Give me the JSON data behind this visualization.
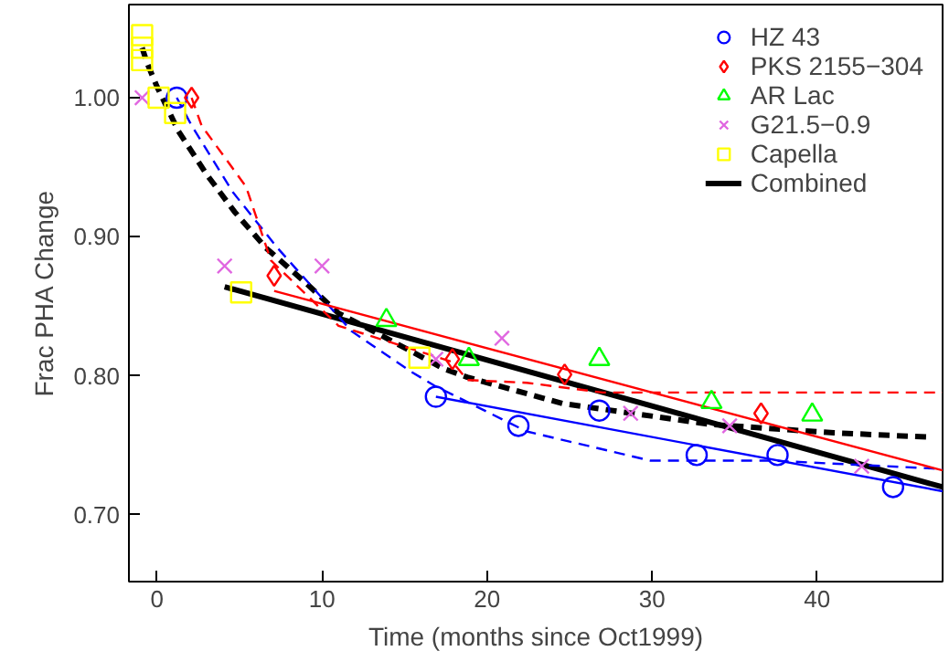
{
  "chart_data": {
    "type": "scatter",
    "xlabel": "Time (months since Oct1999)",
    "ylabel": "Frac PHA Change",
    "xlim": [
      -1.7,
      47.6
    ],
    "ylim": [
      0.652,
      1.067
    ],
    "xticks": [
      0,
      10,
      20,
      30,
      40
    ],
    "yticks": [
      {
        "value": 0.7,
        "label": "0.70"
      },
      {
        "value": 0.8,
        "label": "0.80"
      },
      {
        "value": 0.9,
        "label": "0.90"
      },
      {
        "value": 1.0,
        "label": "1.00"
      }
    ],
    "legend": "top right",
    "grid": false,
    "series": [
      {
        "name": "HZ 43",
        "color": "#0000ff",
        "marker": "circle",
        "x": [
          1.2,
          16.9,
          21.9,
          26.8,
          32.7,
          37.6,
          44.6
        ],
        "values": [
          1.0,
          0.785,
          0.764,
          0.775,
          0.743,
          0.743,
          0.72
        ]
      },
      {
        "name": "PKS 2155−304",
        "color": "#ff0000",
        "marker": "diamond",
        "x": [
          2.1,
          7.1,
          17.9,
          24.7,
          36.6
        ],
        "values": [
          1.0,
          0.872,
          0.812,
          0.801,
          0.773
        ]
      },
      {
        "name": "AR Lac",
        "color": "#00ff00",
        "marker": "triangle",
        "x": [
          13.9,
          18.9,
          26.8,
          33.6,
          39.7
        ],
        "values": [
          0.84,
          0.812,
          0.812,
          0.781,
          0.772
        ]
      },
      {
        "name": "G21.5−0.9",
        "color": "#e066e0",
        "marker": "cross",
        "x": [
          -0.9,
          4.1,
          10.0,
          16.9,
          20.9,
          28.7,
          34.7,
          42.7
        ],
        "values": [
          1.0,
          0.879,
          0.879,
          0.812,
          0.827,
          0.773,
          0.764,
          0.735
        ]
      },
      {
        "name": "Capella",
        "color": "#ffff00",
        "marker": "square",
        "x": [
          -0.9,
          -0.9,
          -0.9,
          0.1,
          1.1,
          5.1,
          15.9
        ],
        "values": [
          1.045,
          1.036,
          1.027,
          1.0,
          0.989,
          0.86,
          0.813
        ]
      },
      {
        "name": "Combined",
        "color": "#000000",
        "type": "line",
        "line_style": "solid",
        "x": [
          4.1,
          47.6
        ],
        "values": [
          0.864,
          0.72
        ]
      },
      {
        "type": "line",
        "color": "#000000",
        "line_style": "dashed",
        "x": [
          -0.9,
          -0.6,
          0,
          1.3,
          3,
          4.7,
          6.6,
          9,
          11,
          13.6,
          17.4,
          18.8,
          24.6,
          33.6,
          41,
          46.6
        ],
        "values": [
          1.036,
          1.025,
          1.008,
          0.976,
          0.945,
          0.918,
          0.892,
          0.867,
          0.845,
          0.829,
          0.805,
          0.799,
          0.78,
          0.765,
          0.759,
          0.756
        ]
      },
      {
        "type": "line",
        "color": "#0000ff",
        "line_style": "solid",
        "x": [
          16.9,
          47.6
        ],
        "values": [
          0.785,
          0.717
        ]
      },
      {
        "type": "line",
        "color": "#0000ff",
        "line_style": "dashed",
        "x": [
          1.2,
          2.1,
          4.6,
          7.3,
          11.8,
          15.4,
          16.8,
          22.4,
          29.9,
          37.3,
          47.6
        ],
        "values": [
          1.0,
          0.98,
          0.932,
          0.892,
          0.832,
          0.803,
          0.793,
          0.76,
          0.739,
          0.739,
          0.733
        ]
      },
      {
        "type": "line",
        "color": "#ff0000",
        "line_style": "solid",
        "x": [
          7.1,
          47.6
        ],
        "values": [
          0.861,
          0.732
        ]
      },
      {
        "type": "line",
        "color": "#ff0000",
        "line_style": "dashed",
        "x": [
          2.1,
          2.7,
          5.4,
          6.9,
          11,
          17.9,
          18.8,
          22.4,
          27,
          47.6
        ],
        "values": [
          1.0,
          0.98,
          0.936,
          0.883,
          0.836,
          0.81,
          0.797,
          0.795,
          0.788,
          0.788
        ]
      }
    ]
  }
}
